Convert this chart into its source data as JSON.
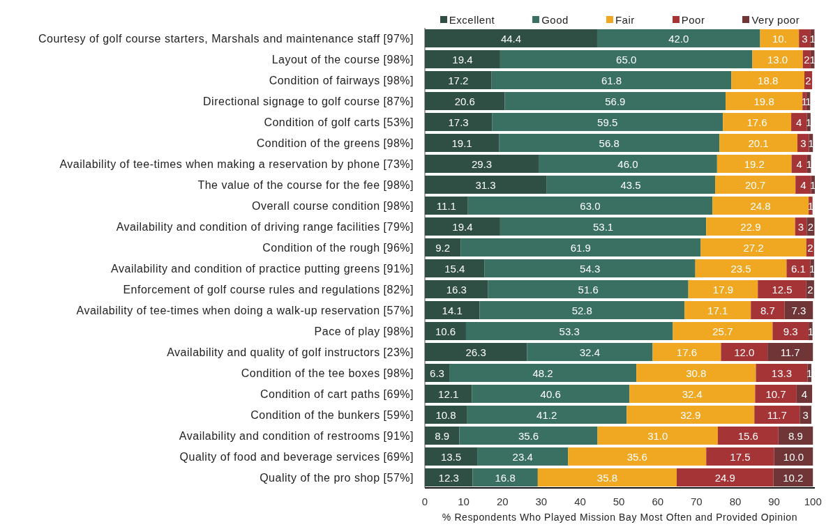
{
  "chart_data": {
    "type": "bar",
    "orientation": "horizontal",
    "stacked": true,
    "legend": "top",
    "xlabel": "% Respondents Who Played Mission Bay Most Often and Provided Opinion",
    "categories": [
      "Courtesy of golf course starters, Marshals and maintenance staff [97%]",
      "Layout of the course [98%]",
      "Condition of fairways [98%]",
      "Directional signage to golf course [87%]",
      "Condition of golf carts [53%]",
      "Condition of the greens [98%]",
      "Availability of tee-times when making a reservation by phone [73%]",
      "The value of the course for the fee [98%]",
      "Overall course condition [98%]",
      "Availability and condition of driving range facilities [79%]",
      "Condition of the rough [96%]",
      "Availability and condition of practice putting greens [91%]",
      "Enforcement of golf course rules and regulations [82%]",
      "Availability of tee-times when doing a walk-up reservation [57%]",
      "Pace of play [98%]",
      "Availability and quality of golf instructors [23%]",
      "Condition of the tee boxes [98%]",
      "Condition of cart paths [69%]",
      "Condition of the bunkers [59%]",
      "Availability and condition of restrooms [91%]",
      "Quality of food and beverage services [69%]",
      "Quality of the pro shop [57%]"
    ],
    "xlim": [
      0,
      100.5
    ],
    "xticks": [
      0,
      10,
      20,
      30,
      40,
      50,
      60,
      70,
      80,
      90,
      100
    ],
    "series": [
      {
        "name": "Excellent",
        "color": "#2f4e44",
        "values": [
          44.4,
          19.4,
          17.2,
          20.6,
          17.3,
          19.1,
          29.3,
          31.3,
          11.1,
          19.4,
          9.2,
          15.4,
          16.3,
          14.1,
          10.6,
          26.3,
          6.3,
          12.1,
          10.8,
          8.9,
          13.5,
          12.3
        ],
        "value_labels": [
          "44.4",
          "19.4",
          "17.2",
          "20.6",
          "17.3",
          "19.1",
          "29.3",
          "31.3",
          "11.1",
          "19.4",
          "9.2",
          "15.4",
          "16.3",
          "14.1",
          "10.6",
          "26.3",
          "6.3",
          "12.1",
          "10.8",
          "8.9",
          "13.5",
          "12.3"
        ]
      },
      {
        "name": "Good",
        "color": "#3a7062",
        "values": [
          42.0,
          65.0,
          61.8,
          56.9,
          59.5,
          56.8,
          46.0,
          43.5,
          63.0,
          53.1,
          61.9,
          54.3,
          51.6,
          52.8,
          53.3,
          32.4,
          48.2,
          40.6,
          41.2,
          35.6,
          23.4,
          16.8
        ],
        "value_labels": [
          "42.0",
          "65.0",
          "61.8",
          "56.9",
          "59.5",
          "56.8",
          "46.0",
          "43.5",
          "63.0",
          "53.1",
          "61.9",
          "54.3",
          "51.6",
          "52.8",
          "53.3",
          "32.4",
          "48.2",
          "40.6",
          "41.2",
          "35.6",
          "23.4",
          "16.8"
        ]
      },
      {
        "name": "Fair",
        "color": "#f0a823",
        "values": [
          10,
          13.0,
          18.8,
          19.8,
          17.6,
          20.1,
          19.2,
          20.7,
          24.8,
          22.9,
          27.2,
          23.5,
          17.9,
          17.1,
          25.7,
          17.6,
          30.8,
          32.4,
          32.9,
          31.0,
          35.6,
          35.8
        ],
        "value_labels": [
          "10.",
          "13.0",
          "18.8",
          "19.8",
          "17.6",
          "20.1",
          "19.2",
          "20.7",
          "24.8",
          "22.9",
          "27.2",
          "23.5",
          "17.9",
          "17.1",
          "25.7",
          "17.6",
          "30.8",
          "32.4",
          "32.9",
          "31.0",
          "35.6",
          "35.8"
        ]
      },
      {
        "name": "Poor",
        "color": "#a53437",
        "values": [
          3,
          2,
          2,
          1,
          4,
          3,
          4,
          4,
          1,
          3,
          2,
          6.1,
          12.5,
          8.7,
          9.3,
          12.0,
          13.3,
          10.7,
          11.7,
          15.6,
          17.5,
          24.9
        ],
        "value_labels": [
          "3",
          "2",
          "2",
          "1",
          "4",
          "3",
          "4",
          "4",
          "1",
          "3",
          "2",
          "6.1",
          "12.5",
          "8.7",
          "9.3",
          "12.0",
          "13.3",
          "10.7",
          "11.7",
          "15.6",
          "17.5",
          "24.9"
        ]
      },
      {
        "name": "Very poor",
        "color": "#703536",
        "values": [
          1,
          1,
          null,
          1,
          1,
          1,
          1,
          1,
          null,
          2,
          null,
          1,
          2,
          7.3,
          1,
          11.7,
          1,
          4,
          3,
          8.9,
          10.0,
          10.2
        ],
        "value_labels": [
          "1",
          "1",
          null,
          "1",
          "1",
          "1",
          "1",
          "1",
          null,
          "2",
          null,
          "1",
          "2",
          "7.3",
          "1",
          "11.7",
          "1",
          "4",
          "3",
          "8.9",
          "10.0",
          "10.2"
        ]
      }
    ]
  }
}
